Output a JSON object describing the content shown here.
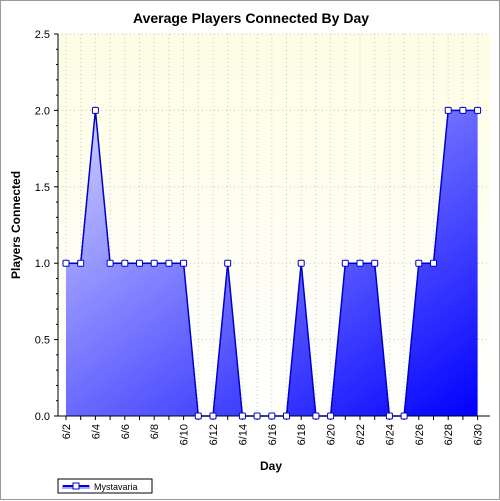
{
  "chart_data": {
    "type": "area",
    "title": "Average Players Connected By Day",
    "xlabel": "Day",
    "ylabel": "Players Connected",
    "ylim": [
      0,
      2.5
    ],
    "yticks": [
      "0.0",
      "0.5",
      "1.0",
      "1.5",
      "2.0",
      "2.5"
    ],
    "x": [
      "6/2",
      "6/3",
      "6/4",
      "6/5",
      "6/6",
      "6/7",
      "6/8",
      "6/9",
      "6/10",
      "6/11",
      "6/12",
      "6/13",
      "6/14",
      "6/15",
      "6/16",
      "6/17",
      "6/18",
      "6/19",
      "6/20",
      "6/21",
      "6/22",
      "6/23",
      "6/24",
      "6/25",
      "6/26",
      "6/27",
      "6/28",
      "6/29",
      "6/30"
    ],
    "xtick_labels": [
      "6/2",
      "6/4",
      "6/6",
      "6/8",
      "6/10",
      "6/12",
      "6/14",
      "6/16",
      "6/18",
      "6/20",
      "6/22",
      "6/24",
      "6/26",
      "6/28",
      "6/30"
    ],
    "series": [
      {
        "name": "Mystavaria",
        "values": [
          1,
          1,
          2,
          1,
          1,
          1,
          1,
          1,
          1,
          0,
          0,
          1,
          0,
          0,
          0,
          0,
          1,
          0,
          0,
          1,
          1,
          1,
          0,
          0,
          1,
          1,
          2,
          2,
          2
        ]
      }
    ],
    "grid": true,
    "legend_position": "bottom-left",
    "colors": {
      "plot_bg_top": "#fdfde4",
      "plot_bg_bottom": "#ffffff",
      "fill_start": "#d2d2ff",
      "fill_end": "#0000ff",
      "line": "#0000cc",
      "marker_fill": "#ffffff",
      "grid": "#c8c8c8"
    }
  }
}
